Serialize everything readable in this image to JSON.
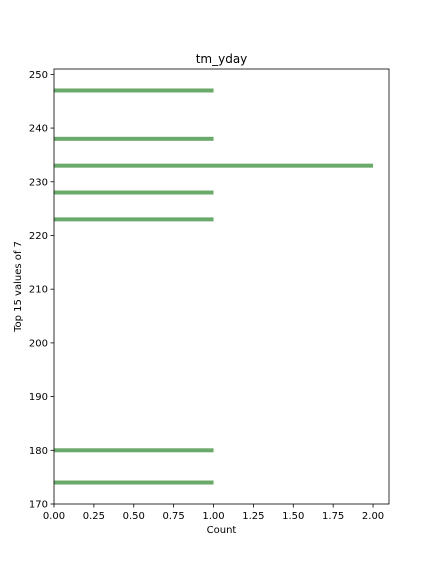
{
  "chart_data": {
    "type": "bar",
    "orientation": "horizontal",
    "title": "tm_yday",
    "xlabel": "Count",
    "ylabel": "Top 15 values of 7",
    "xlim": [
      0,
      2.1
    ],
    "ylim": [
      170,
      251
    ],
    "xticks": [
      "0.00",
      "0.25",
      "0.50",
      "0.75",
      "1.00",
      "1.25",
      "1.50",
      "1.75",
      "2.00"
    ],
    "yticks": [
      "170",
      "180",
      "190",
      "200",
      "210",
      "220",
      "230",
      "240",
      "250"
    ],
    "bar_color": "#69aa6a",
    "grid": false,
    "legend": "none",
    "bars": [
      {
        "y": 174,
        "count": 1
      },
      {
        "y": 180,
        "count": 1
      },
      {
        "y": 223,
        "count": 1
      },
      {
        "y": 228,
        "count": 1
      },
      {
        "y": 233,
        "count": 2
      },
      {
        "y": 238,
        "count": 1
      },
      {
        "y": 247,
        "count": 1
      }
    ]
  }
}
